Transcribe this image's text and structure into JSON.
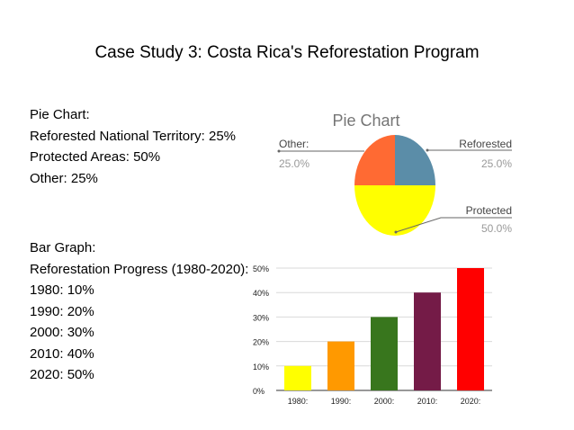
{
  "slide": {
    "title": "Case Study 3: Costa Rica's Reforestation Program"
  },
  "pie_text": {
    "heading": "Pie Chart:",
    "lines": [
      "Reforested National Territory: 25%",
      "Protected Areas: 50%",
      "Other: 25%"
    ]
  },
  "bar_text": {
    "heading": "Bar Graph:",
    "lines": [
      "Reforestation Progress (1980-2020):",
      "1980: 10%",
      "1990: 20%",
      "2000: 30%",
      "2010: 40%",
      "2020: 50%"
    ]
  },
  "chart_data": [
    {
      "type": "pie",
      "title": "Pie Chart",
      "slices": [
        {
          "label": "Reforested",
          "value": 25,
          "value_label": "25.0%",
          "color": "#5B8DA8"
        },
        {
          "label": "Protected",
          "value": 50,
          "value_label": "50.0%",
          "color": "#FFFF00"
        },
        {
          "label": "Other:",
          "value": 25,
          "value_label": "25.0%",
          "color": "#FF6A33"
        }
      ]
    },
    {
      "type": "bar",
      "title": "",
      "categories": [
        "1980:",
        "1990:",
        "2000:",
        "2010:",
        "2020:"
      ],
      "values": [
        10,
        20,
        30,
        40,
        50
      ],
      "colors": [
        "#FFFF00",
        "#FF9900",
        "#38761D",
        "#741B47",
        "#FF0000"
      ],
      "yticks": [
        "0%",
        "10%",
        "20%",
        "30%",
        "40%",
        "50%"
      ],
      "ylim": [
        0,
        50
      ],
      "xlabel": "",
      "ylabel": "",
      "grid": true
    }
  ]
}
